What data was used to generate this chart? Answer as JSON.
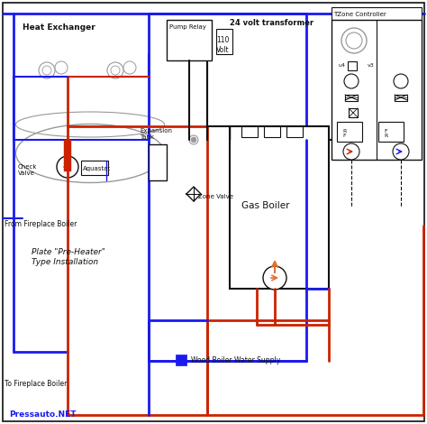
{
  "bg_color": "#ffffff",
  "labels": {
    "heat_exchanger": "Heat Exchanger",
    "check_valve": "Check\nValve",
    "aquastat": "Aquastat",
    "expansion_tank": "Expansion\nTank",
    "zone_valve": "Zone Valve",
    "from_fireplace": "From Fireplace Boiler",
    "to_fireplace": "To Fireplace Boiler",
    "plate_preheater": "Plate \"Pre-Heater\"\nType Installation",
    "pump_relay": "Pump Relay",
    "volt110": "110\nVolt",
    "transformer24": "24 volt transformer",
    "gas_boiler": "Gas Boiler",
    "wood_boiler": "Wood Boiler Water Supply",
    "tzone": "TZone Controller",
    "pressauto": "Pressauto.NET"
  },
  "red": "#cc2200",
  "blue": "#1a1aee",
  "orange": "#e07030",
  "black": "#111111",
  "gray": "#999999",
  "lgray": "#cccccc"
}
